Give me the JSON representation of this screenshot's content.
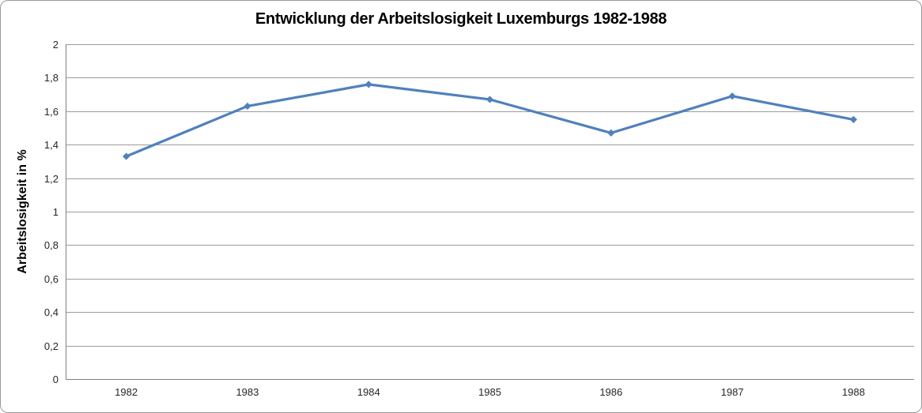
{
  "chart_data": {
    "type": "line",
    "title": "Entwicklung der Arbeitslosigkeit Luxemburgs 1982-1988",
    "ylabel": "Arbeitslosigkeit in %",
    "xlabel": "",
    "categories": [
      "1982",
      "1983",
      "1984",
      "1985",
      "1986",
      "1987",
      "1988"
    ],
    "values": [
      1.33,
      1.63,
      1.76,
      1.67,
      1.47,
      1.69,
      1.55
    ],
    "ylim": [
      0,
      2
    ],
    "ytick_labels": [
      "0",
      "0,2",
      "0,4",
      "0,6",
      "0,8",
      "1",
      "1,2",
      "1,4",
      "1,6",
      "1,8",
      "2"
    ],
    "grid": true,
    "legend": "none",
    "marker": "diamond",
    "line_color": "#4F81BD",
    "gridline_color": "#9B9B9B",
    "axis_color": "#808080",
    "text_color": "#262626",
    "background_color": "#FFFFFF"
  }
}
